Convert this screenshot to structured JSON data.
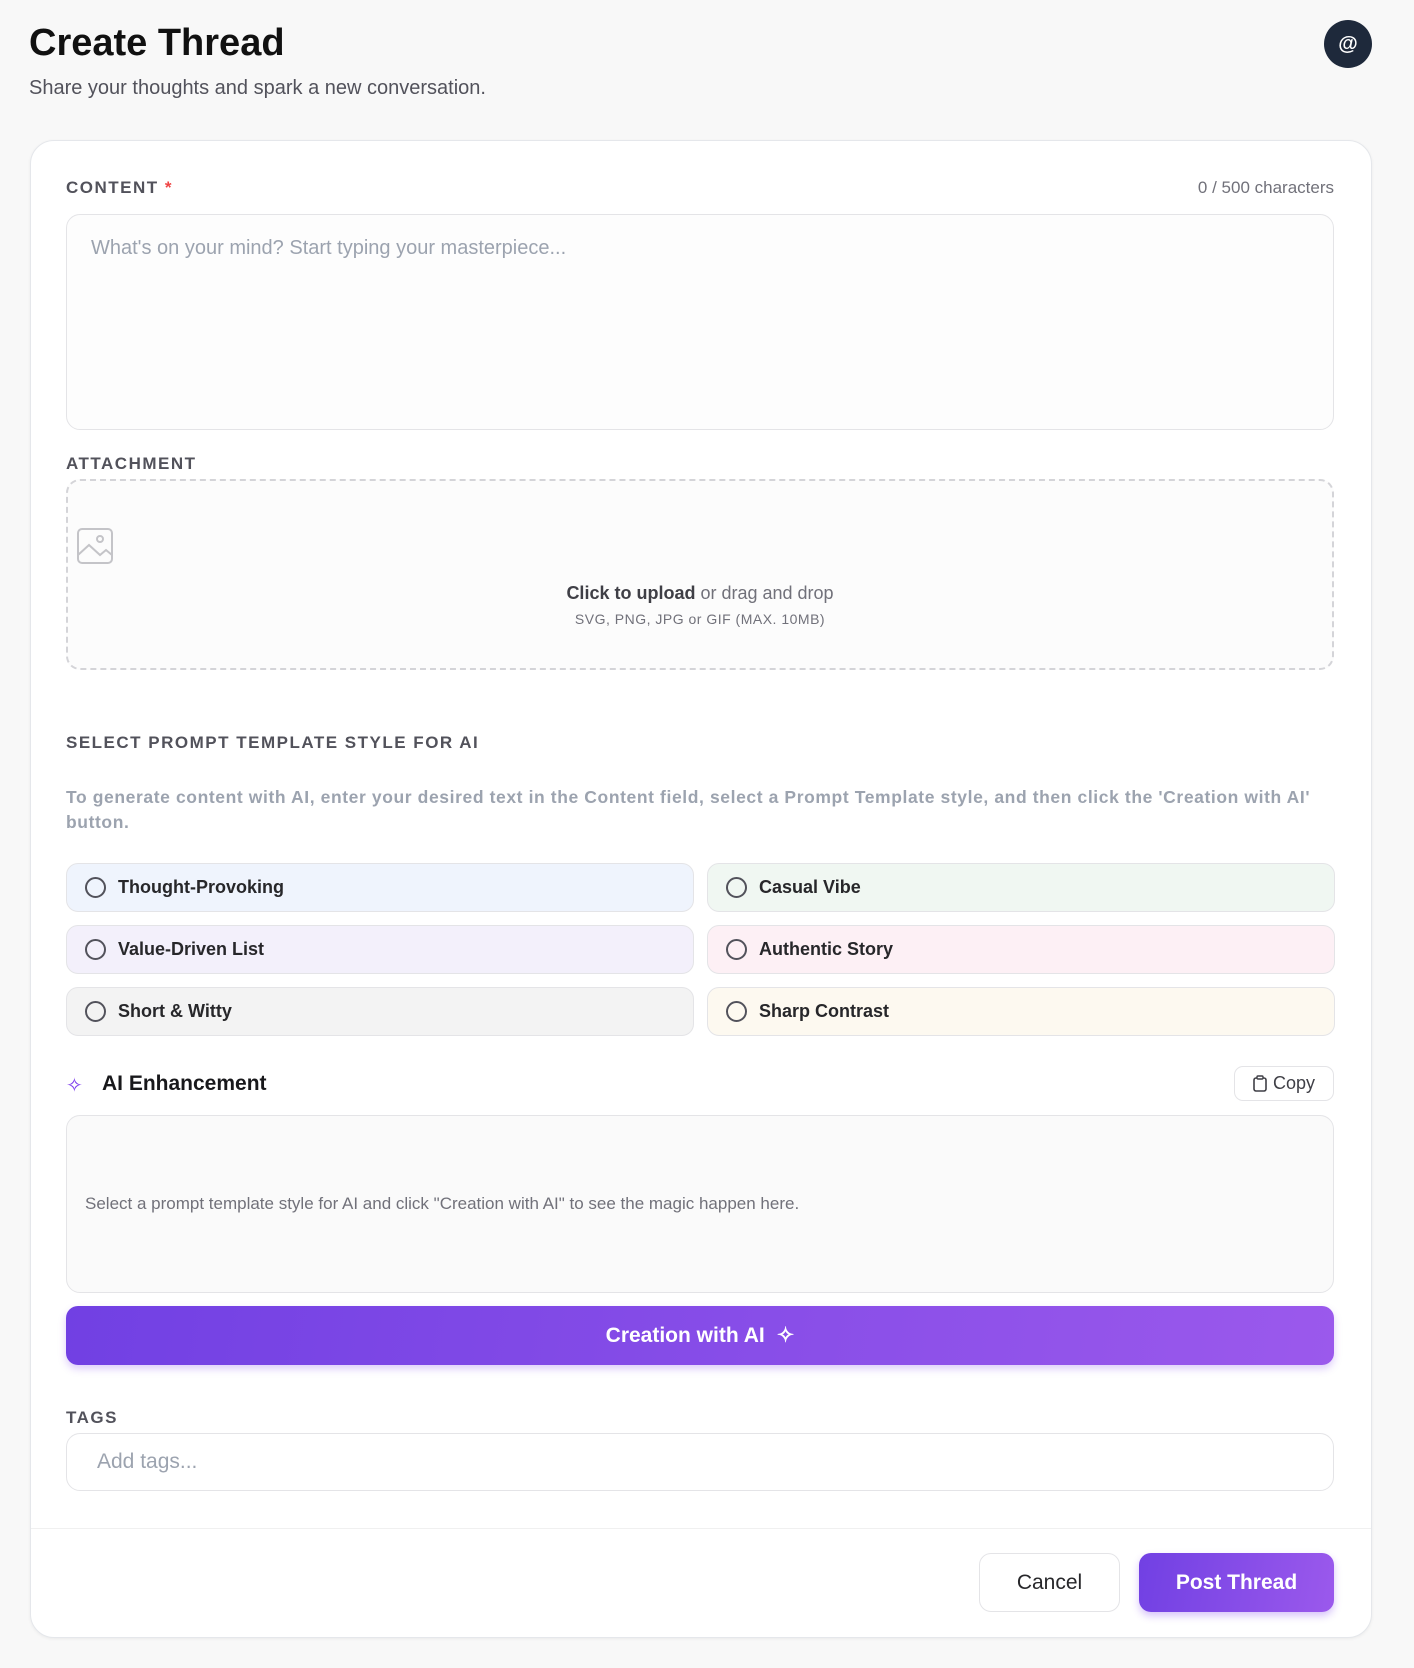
{
  "header": {
    "title": "Create Thread",
    "subtitle": "Share your thoughts and spark a new conversation.",
    "avatar": "@"
  },
  "content": {
    "label": "CONTENT",
    "required": "*",
    "counter": "0 / 500 characters",
    "placeholder": "What's on your mind? Start typing your masterpiece..."
  },
  "attachment": {
    "label": "ATTACHMENT",
    "click": "Click to upload",
    "drag": " or drag and drop",
    "formats": "SVG, PNG, JPG or GIF (MAX. 10MB)",
    "icon": "image-icon"
  },
  "prompt": {
    "label": "SELECT PROMPT TEMPLATE STYLE FOR AI",
    "description": "To generate content with AI, enter your desired text in the Content field, select a Prompt Template style, and then click the 'Creation with AI' button.",
    "options": [
      {
        "label": "Thought-Provoking",
        "color": "#eff4fd"
      },
      {
        "label": "Casual Vibe",
        "color": "#f0f7f2"
      },
      {
        "label": "Value-Driven List",
        "color": "#f3f0fb"
      },
      {
        "label": "Authentic Story",
        "color": "#fdf0f5"
      },
      {
        "label": "Short & Witty",
        "color": "#f3f3f3"
      },
      {
        "label": "Sharp Contrast",
        "color": "#fdf9f0"
      }
    ]
  },
  "ai": {
    "title": "AI Enhancement",
    "copy": "Copy",
    "placeholder": "Select a prompt template style for AI and click \"Creation with AI\" to see the magic happen here.",
    "create": "Creation with AI",
    "accent": "#7c3aed"
  },
  "tags": {
    "label": "TAGS",
    "placeholder": "Add tags..."
  },
  "footer": {
    "cancel": "Cancel",
    "post": "Post Thread"
  }
}
